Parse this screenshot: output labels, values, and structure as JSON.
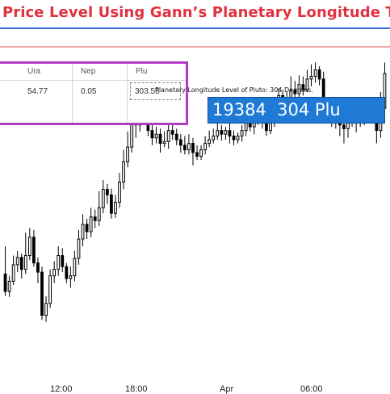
{
  "title": "Price Level Using Gann’s Planetary Longitude Techn",
  "annotation": "Planetary Longitude Level of Pluto: 304 Degrees.",
  "readout": "19384  304 Plu",
  "planet_table": {
    "headers": [
      "Ura",
      "Nep",
      "Plu"
    ],
    "values": [
      "54.77",
      "0.05",
      "303.55"
    ]
  },
  "colors": {
    "title": "#e0313f",
    "level_line": "#d9534f",
    "table_border": "#b03cc4",
    "readout_bg": "#1f7ad6"
  },
  "chart_data": {
    "type": "candlestick",
    "x_ticks": [
      "12:00",
      "18:00",
      "Apr",
      "06:00"
    ],
    "annotations": [
      "Planetary Longitude Level of Pluto: 304 Degrees."
    ],
    "candles": [
      [
        120,
        101,
        150,
        96
      ],
      [
        101,
        112,
        118,
        95
      ],
      [
        112,
        130,
        140,
        108
      ],
      [
        130,
        138,
        145,
        122
      ],
      [
        138,
        125,
        142,
        115
      ],
      [
        125,
        140,
        165,
        120
      ],
      [
        140,
        160,
        170,
        135
      ],
      [
        160,
        132,
        168,
        128
      ],
      [
        132,
        122,
        138,
        110
      ],
      [
        122,
        75,
        128,
        70
      ],
      [
        75,
        88,
        96,
        68
      ],
      [
        88,
        118,
        125,
        83
      ],
      [
        118,
        125,
        134,
        110
      ],
      [
        125,
        140,
        150,
        118
      ],
      [
        140,
        128,
        148,
        122
      ],
      [
        128,
        115,
        132,
        110
      ],
      [
        115,
        118,
        128,
        105
      ],
      [
        118,
        137,
        145,
        112
      ],
      [
        137,
        158,
        168,
        130
      ],
      [
        158,
        174,
        185,
        150
      ],
      [
        174,
        166,
        180,
        158
      ],
      [
        166,
        182,
        192,
        160
      ],
      [
        182,
        178,
        190,
        170
      ],
      [
        178,
        192,
        210,
        172
      ],
      [
        192,
        212,
        222,
        186
      ],
      [
        212,
        206,
        218,
        196
      ],
      [
        206,
        186,
        213,
        180
      ],
      [
        186,
        198,
        206,
        181
      ],
      [
        198,
        220,
        230,
        192
      ],
      [
        220,
        242,
        255,
        212
      ],
      [
        242,
        258,
        275,
        236
      ],
      [
        258,
        286,
        302,
        252
      ],
      [
        286,
        282,
        300,
        268
      ],
      [
        282,
        298,
        315,
        275
      ],
      [
        298,
        292,
        318,
        288
      ],
      [
        292,
        276,
        305,
        270
      ],
      [
        276,
        268,
        284,
        260
      ],
      [
        268,
        272,
        280,
        262
      ],
      [
        272,
        262,
        278,
        252
      ],
      [
        262,
        264,
        275,
        258
      ],
      [
        264,
        276,
        282,
        256
      ],
      [
        276,
        272,
        285,
        266
      ],
      [
        272,
        266,
        278,
        260
      ],
      [
        266,
        260,
        272,
        252
      ],
      [
        260,
        255,
        270,
        250
      ],
      [
        255,
        262,
        272,
        250
      ],
      [
        262,
        252,
        268,
        238
      ],
      [
        252,
        248,
        260,
        244
      ],
      [
        248,
        255,
        260,
        244
      ],
      [
        255,
        262,
        270,
        250
      ],
      [
        262,
        266,
        276,
        258
      ],
      [
        266,
        270,
        278,
        262
      ],
      [
        270,
        276,
        285,
        266
      ],
      [
        276,
        272,
        282,
        265
      ],
      [
        272,
        276,
        280,
        266
      ],
      [
        276,
        270,
        286,
        262
      ],
      [
        270,
        266,
        276,
        260
      ],
      [
        266,
        270,
        274,
        262
      ],
      [
        270,
        276,
        282,
        264
      ],
      [
        276,
        290,
        298,
        270
      ],
      [
        290,
        280,
        296,
        275
      ],
      [
        280,
        286,
        292,
        272
      ],
      [
        286,
        296,
        302,
        282
      ],
      [
        296,
        286,
        300,
        278
      ],
      [
        286,
        276,
        295,
        270
      ],
      [
        276,
        284,
        290,
        272
      ],
      [
        284,
        292,
        305,
        280
      ],
      [
        292,
        314,
        322,
        288
      ],
      [
        314,
        305,
        320,
        298
      ],
      [
        305,
        308,
        318,
        300
      ],
      [
        308,
        320,
        335,
        302
      ],
      [
        320,
        316,
        330,
        306
      ],
      [
        316,
        326,
        336,
        310
      ],
      [
        326,
        320,
        335,
        314
      ],
      [
        320,
        332,
        342,
        318
      ],
      [
        332,
        335,
        348,
        324
      ],
      [
        335,
        342,
        350,
        328
      ],
      [
        342,
        332,
        346,
        325
      ],
      [
        332,
        300,
        340,
        290
      ],
      [
        300,
        292,
        310,
        285
      ],
      [
        292,
        298,
        304,
        280
      ],
      [
        298,
        286,
        305,
        278
      ],
      [
        286,
        282,
        292,
        270
      ],
      [
        282,
        278,
        288,
        262
      ],
      [
        278,
        284,
        290,
        268
      ],
      [
        284,
        288,
        296,
        280
      ],
      [
        288,
        284,
        296,
        274
      ],
      [
        284,
        294,
        302,
        280
      ],
      [
        294,
        290,
        300,
        282
      ],
      [
        290,
        300,
        306,
        285
      ],
      [
        300,
        296,
        310,
        290
      ],
      [
        296,
        276,
        302,
        262
      ],
      [
        276,
        300,
        318,
        268
      ],
      [
        300,
        338,
        350,
        290
      ]
    ],
    "pluto_level_line": "Planetary Longitude Level of Pluto: 304 Degrees."
  }
}
